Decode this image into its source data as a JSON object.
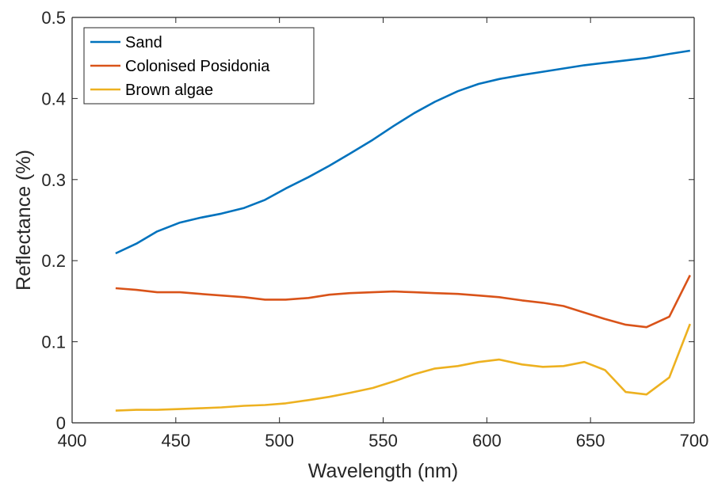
{
  "chart_data": {
    "type": "line",
    "xlabel": "Wavelength (nm)",
    "ylabel": "Reflectance (%)",
    "xlim": [
      400,
      700
    ],
    "ylim": [
      0,
      0.5
    ],
    "xticks": [
      400,
      450,
      500,
      550,
      600,
      650,
      700
    ],
    "yticks": [
      0,
      0.1,
      0.2,
      0.3,
      0.4,
      0.5
    ],
    "xtick_labels": [
      "400",
      "450",
      "500",
      "550",
      "600",
      "650",
      "700"
    ],
    "ytick_labels": [
      "0",
      "0.1",
      "0.2",
      "0.3",
      "0.4",
      "0.5"
    ],
    "grid": false,
    "legend_position": "top-left",
    "x": [
      421,
      431,
      441,
      452,
      462,
      472,
      483,
      493,
      503,
      514,
      524,
      534,
      545,
      555,
      565,
      575,
      586,
      596,
      606,
      617,
      627,
      637,
      647,
      657,
      667,
      677,
      688,
      698
    ],
    "series": [
      {
        "name": "Sand",
        "color": "#0072BD",
        "values": [
          0.209,
          0.221,
          0.236,
          0.247,
          0.253,
          0.258,
          0.265,
          0.275,
          0.289,
          0.303,
          0.317,
          0.332,
          0.349,
          0.366,
          0.382,
          0.396,
          0.409,
          0.418,
          0.424,
          0.429,
          0.433,
          0.437,
          0.441,
          0.444,
          0.447,
          0.45,
          0.455,
          0.459
        ]
      },
      {
        "name": "Colonised Posidonia",
        "color": "#D95319",
        "values": [
          0.166,
          0.164,
          0.161,
          0.161,
          0.159,
          0.157,
          0.155,
          0.152,
          0.152,
          0.154,
          0.158,
          0.16,
          0.161,
          0.162,
          0.161,
          0.16,
          0.159,
          0.157,
          0.155,
          0.151,
          0.148,
          0.144,
          0.136,
          0.128,
          0.121,
          0.118,
          0.131,
          0.182
        ]
      },
      {
        "name": "Brown algae",
        "color": "#EDB120",
        "values": [
          0.015,
          0.016,
          0.016,
          0.017,
          0.018,
          0.019,
          0.021,
          0.022,
          0.024,
          0.028,
          0.032,
          0.037,
          0.043,
          0.051,
          0.06,
          0.067,
          0.07,
          0.075,
          0.078,
          0.072,
          0.069,
          0.07,
          0.075,
          0.065,
          0.038,
          0.035,
          0.056,
          0.122
        ]
      }
    ]
  }
}
